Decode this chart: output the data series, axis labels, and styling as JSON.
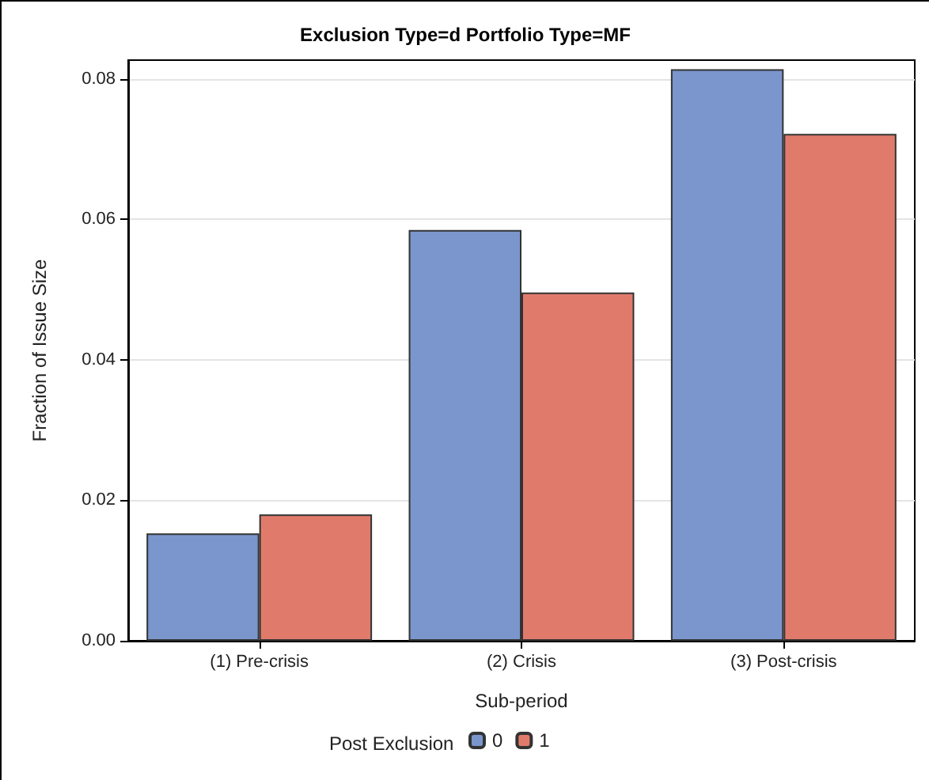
{
  "chart_data": {
    "type": "bar",
    "title": "Exclusion Type=d Portfolio Type=MF",
    "xlabel": "Sub-period",
    "ylabel": "Fraction of Issue Size",
    "legend_title": "Post Exclusion",
    "categories": [
      "(1) Pre-crisis",
      "(2) Crisis",
      "(3) Post-crisis"
    ],
    "series": [
      {
        "name": "0",
        "color": "#7b96cc",
        "values": [
          0.0153,
          0.0585,
          0.0814
        ]
      },
      {
        "name": "1",
        "color": "#e07b6c",
        "values": [
          0.018,
          0.0496,
          0.0722
        ]
      }
    ],
    "ylim": [
      0,
      0.0827
    ],
    "yticks": [
      {
        "value": 0,
        "label": "0.00"
      },
      0.02,
      0.04,
      0.06,
      0.08
    ],
    "grid": "y",
    "legend": "bottom"
  }
}
